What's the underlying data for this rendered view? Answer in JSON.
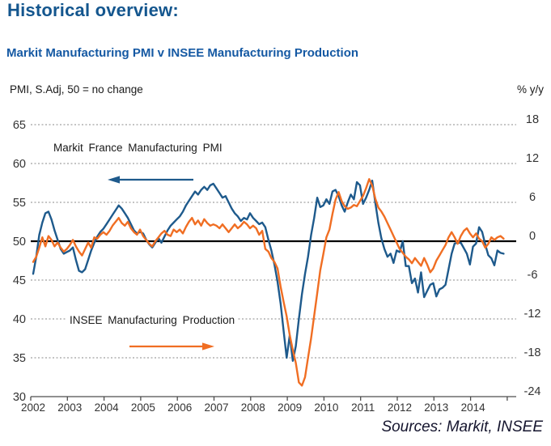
{
  "page": {
    "title": "Historical overview:",
    "source_note": "Sources: Markit, INSEE"
  },
  "colors": {
    "title_navy": "#14568E",
    "subtitle_blue": "#1559A3",
    "pmi_blue": "#1E5A8C",
    "insee_orange": "#F06E23",
    "baseline_black": "#000000",
    "gridline_gray": "#8a8a8a",
    "axis_gray": "#4d4d4d",
    "tick_text": "#333333"
  },
  "chart_data": {
    "type": "line",
    "title": "Markit Manufacturing PMI v INSEE Manufacturing Production",
    "left_axis_caption": "PMI, S.Adj, 50 = no change",
    "right_axis_caption": "% y/y",
    "grid": "horizontal-dashed",
    "legend_position": "in-plot annotations with arrows",
    "x": {
      "start_year": 2002,
      "frequency": "monthly",
      "tick_labels": [
        "2002",
        "2003",
        "2004",
        "2005",
        "2006",
        "2007",
        "2008",
        "2009",
        "2010",
        "2011",
        "2012",
        "2013",
        "2014"
      ]
    },
    "y_left": {
      "ticks": [
        65,
        60,
        55,
        50,
        45,
        40,
        35,
        30
      ],
      "range": [
        30,
        65
      ],
      "baseline": 50
    },
    "y_right": {
      "ticks": [
        18,
        12,
        6,
        0,
        -6,
        -12,
        -18,
        -24
      ],
      "range": [
        -24,
        18
      ],
      "baseline": 0
    },
    "annotations": [
      {
        "text": "Markit France Manufacturing PMI",
        "series": "pmi",
        "arrow_direction": "left"
      },
      {
        "text": "INSEE Manufacturing Production",
        "series": "insee",
        "arrow_direction": "right"
      }
    ],
    "series": [
      {
        "name": "Markit France Manufacturing PMI",
        "axis": "left",
        "color": "#1E5A8C",
        "values": [
          45.8,
          48.0,
          50.8,
          52.4,
          53.6,
          53.8,
          52.8,
          51.4,
          50.2,
          49.0,
          48.4,
          48.6,
          48.8,
          49.2,
          47.6,
          46.2,
          46.0,
          46.4,
          47.6,
          48.8,
          49.8,
          50.6,
          51.2,
          51.6,
          52.2,
          52.8,
          53.4,
          54.0,
          54.6,
          54.2,
          53.6,
          53.0,
          52.2,
          51.4,
          51.0,
          51.2,
          51.0,
          50.2,
          49.6,
          49.2,
          49.8,
          50.4,
          49.8,
          50.6,
          51.4,
          52.0,
          52.4,
          52.8,
          53.2,
          53.8,
          54.6,
          55.2,
          55.8,
          56.4,
          56.0,
          56.6,
          57.0,
          56.6,
          57.2,
          57.4,
          56.8,
          56.2,
          55.6,
          55.8,
          55.0,
          54.2,
          53.6,
          53.2,
          52.6,
          53.0,
          52.8,
          53.6,
          53.0,
          52.6,
          52.2,
          52.4,
          51.8,
          50.2,
          48.8,
          47.0,
          44.8,
          42.0,
          38.4,
          35.0,
          37.9,
          34.6,
          36.5,
          40.0,
          43.2,
          45.8,
          48.0,
          50.8,
          53.0,
          55.6,
          54.4,
          54.6,
          55.4,
          54.8,
          56.4,
          56.6,
          55.8,
          54.6,
          53.8,
          55.0,
          56.0,
          55.4,
          57.6,
          57.2,
          54.8,
          55.6,
          56.6,
          57.8,
          55.0,
          52.4,
          50.4,
          49.0,
          48.0,
          48.4,
          47.2,
          48.8,
          48.6,
          50.0,
          46.8,
          46.8,
          44.6,
          45.2,
          43.4,
          46.0,
          42.8,
          43.6,
          44.4,
          44.6,
          42.9,
          43.8,
          44.0,
          44.4,
          46.4,
          48.4,
          49.7,
          49.8,
          49.8,
          49.1,
          48.4,
          47.0,
          49.3,
          49.7,
          51.8,
          51.2,
          49.6,
          48.2,
          47.8,
          46.9,
          48.8,
          48.5,
          48.4
        ]
      },
      {
        "name": "INSEE Manufacturing Production",
        "axis": "right",
        "color": "#F06E23",
        "values": [
          -3.2,
          -2.4,
          -1.0,
          0.6,
          -0.8,
          0.8,
          0.2,
          -0.8,
          -0.2,
          -1.0,
          -1.6,
          -1.2,
          -0.6,
          0.2,
          -0.8,
          -1.6,
          -2.2,
          -1.2,
          -0.2,
          -1.0,
          0.6,
          0.4,
          1.0,
          1.4,
          1.0,
          1.6,
          2.4,
          3.0,
          3.6,
          2.8,
          2.4,
          3.0,
          2.0,
          1.4,
          1.0,
          1.8,
          0.8,
          0.2,
          -0.4,
          -0.8,
          0.0,
          0.6,
          1.2,
          1.6,
          1.0,
          0.8,
          1.8,
          1.4,
          1.8,
          1.2,
          2.2,
          3.0,
          3.6,
          2.6,
          3.2,
          2.4,
          3.4,
          2.8,
          2.4,
          2.6,
          2.4,
          2.0,
          2.6,
          2.0,
          1.4,
          2.0,
          2.6,
          2.0,
          2.4,
          3.0,
          2.6,
          2.0,
          2.4,
          2.0,
          1.0,
          1.6,
          -1.2,
          -1.6,
          -2.6,
          -3.2,
          -4.2,
          -7.0,
          -9.4,
          -11.6,
          -14.5,
          -16.8,
          -18.8,
          -21.8,
          -22.3,
          -21.0,
          -18.0,
          -15.0,
          -11.5,
          -8.0,
          -4.5,
          -2.0,
          0.6,
          1.8,
          4.2,
          6.4,
          7.6,
          6.2,
          5.4,
          5.0,
          5.2,
          5.6,
          5.4,
          6.2,
          7.0,
          8.2,
          9.6,
          8.6,
          6.6,
          5.2,
          4.6,
          3.8,
          2.8,
          1.8,
          0.8,
          -0.2,
          -1.2,
          -1.8,
          -2.4,
          -2.8,
          -3.4,
          -2.6,
          -3.2,
          -3.8,
          -2.6,
          -3.6,
          -4.8,
          -4.2,
          -3.0,
          -2.2,
          -1.4,
          -0.6,
          0.6,
          1.4,
          0.6,
          -0.4,
          0.8,
          1.6,
          2.0,
          1.2,
          0.6,
          1.2,
          0.4,
          0.0,
          -1.0,
          -0.4,
          0.6,
          0.2,
          0.6,
          0.8,
          0.4
        ]
      }
    ]
  }
}
